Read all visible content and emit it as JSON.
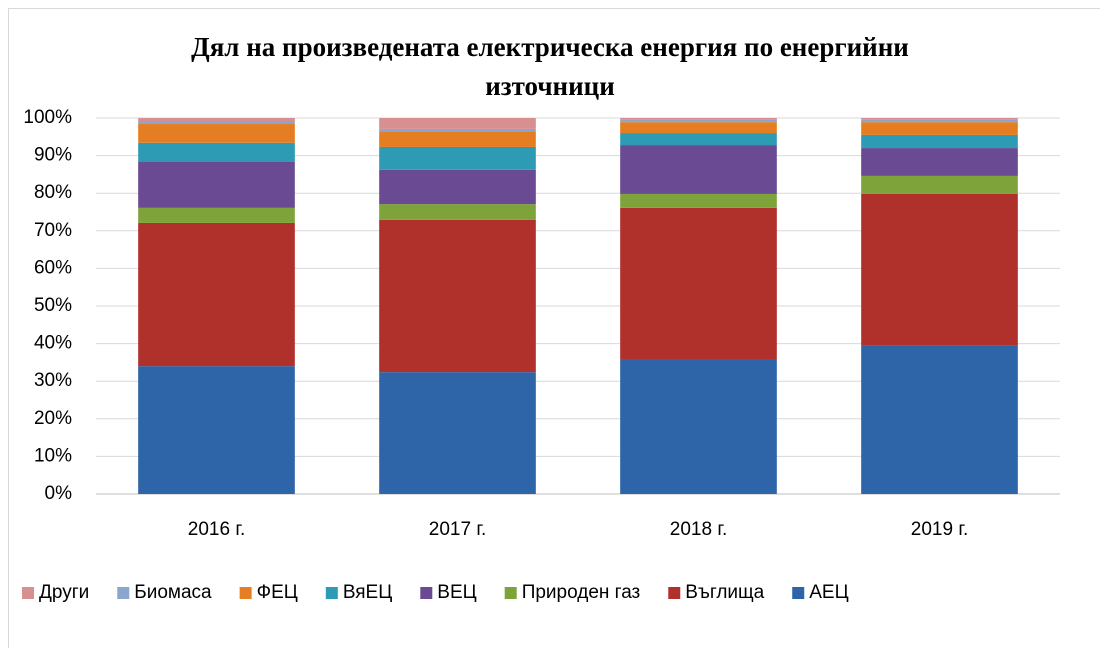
{
  "chart_data": {
    "type": "bar",
    "stacked": true,
    "title": "Дял на произведената електрическа енергия по енергийни източници",
    "categories": [
      "2016 г.",
      "2017 г.",
      "2018 г.",
      "2019 г."
    ],
    "series": [
      {
        "name": "АЕЦ",
        "color": "#2e64a8",
        "values": [
          34.0,
          32.4,
          35.9,
          39.6
        ]
      },
      {
        "name": "Въглища",
        "color": "#b0302c",
        "values": [
          38.1,
          40.5,
          40.2,
          40.2
        ]
      },
      {
        "name": "Природен газ",
        "color": "#7ea33a",
        "values": [
          4.0,
          4.2,
          3.7,
          4.8
        ]
      },
      {
        "name": "ВЕЦ",
        "color": "#6a4a92",
        "values": [
          12.2,
          9.1,
          13.0,
          7.4
        ]
      },
      {
        "name": "ВяЕЦ",
        "color": "#2e9bb5",
        "values": [
          5.1,
          6.1,
          3.2,
          3.5
        ]
      },
      {
        "name": "ФЕЦ",
        "color": "#e57d22",
        "values": [
          5.0,
          4.2,
          2.9,
          3.4
        ]
      },
      {
        "name": "Биомаса",
        "color": "#8aa6cf",
        "values": [
          0.8,
          0.6,
          0.6,
          0.6
        ]
      },
      {
        "name": "Други",
        "color": "#d88f8f",
        "values": [
          0.8,
          2.9,
          0.5,
          0.5
        ]
      }
    ],
    "ylim": [
      0,
      100
    ],
    "yticks": [
      {
        "value": 0,
        "label": "0%"
      },
      {
        "value": 10,
        "label": "10%"
      },
      {
        "value": 20,
        "label": "20%"
      },
      {
        "value": 30,
        "label": "30%"
      },
      {
        "value": 40,
        "label": "40%"
      },
      {
        "value": 50,
        "label": "50%"
      },
      {
        "value": 60,
        "label": "60%"
      },
      {
        "value": 70,
        "label": "70%"
      },
      {
        "value": 80,
        "label": "80%"
      },
      {
        "value": 90,
        "label": "90%"
      },
      {
        "value": 100,
        "label": "100%"
      }
    ],
    "grid": true,
    "legend": "bottom"
  }
}
